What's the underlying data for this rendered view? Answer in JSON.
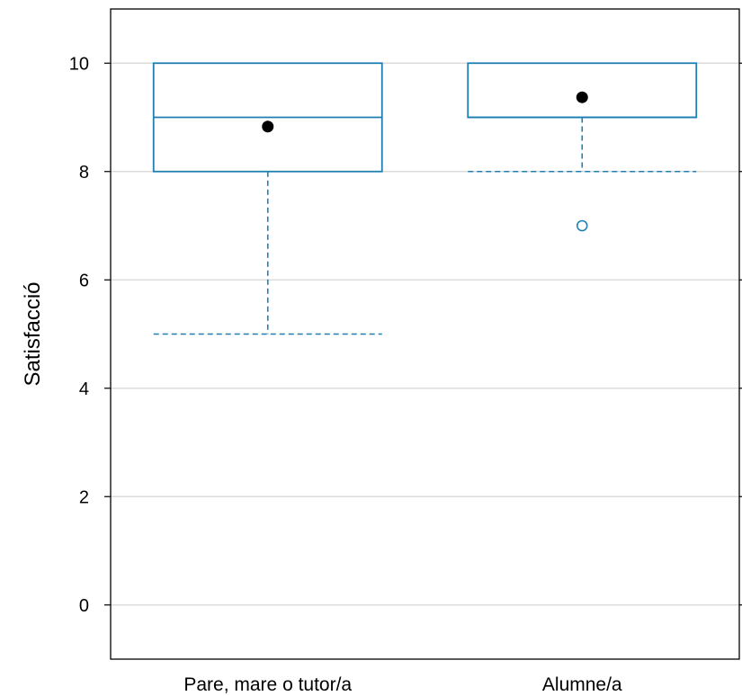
{
  "chart_data": {
    "type": "box",
    "ylabel": "Satisfacció",
    "xlabel": "",
    "ylim": [
      -1,
      11
    ],
    "yticks": [
      0,
      2,
      4,
      6,
      8,
      10
    ],
    "grid": true,
    "colors": {
      "box": "#1f7fb0",
      "mean": "#000000",
      "grid": "#dcdcdc",
      "frame": "#000000"
    },
    "categories": [
      "Pare, mare o tutor/a",
      "Alumne/a"
    ],
    "boxes": [
      {
        "category": "Pare, mare o tutor/a",
        "whisker_low": 5,
        "q1": 8,
        "median": 9,
        "q3": 10,
        "whisker_high": 10,
        "mean": 8.83,
        "outliers": []
      },
      {
        "category": "Alumne/a",
        "whisker_low": 8,
        "q1": 9,
        "median": 9,
        "q3": 10,
        "whisker_high": 10,
        "mean": 9.37,
        "outliers": [
          7
        ]
      }
    ]
  }
}
